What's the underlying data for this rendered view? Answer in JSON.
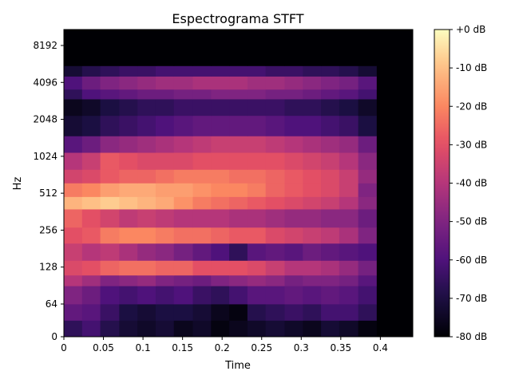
{
  "chart_data": {
    "type": "heatmap",
    "title": "Espectrograma STFT",
    "xlabel": "Time",
    "ylabel": "Hz",
    "xlim": [
      0,
      0.441
    ],
    "x_ticks": [
      "0",
      "0.05",
      "0.1",
      "0.15",
      "0.2",
      "0.25",
      "0.3",
      "0.35",
      "0.4"
    ],
    "x_tick_values": [
      0,
      0.05,
      0.1,
      0.15,
      0.2,
      0.25,
      0.3,
      0.35,
      0.4
    ],
    "y_scale": "log2-with-zero (symlog)",
    "y_ticks": [
      "0",
      "64",
      "128",
      "256",
      "512",
      "1024",
      "2048",
      "4096",
      "8192"
    ],
    "y_tick_values": [
      0,
      64,
      128,
      256,
      512,
      1024,
      2048,
      4096,
      8192
    ],
    "ylim": [
      0,
      11025
    ],
    "grid": false,
    "colormap": "magma",
    "colorbar": {
      "ticks": [
        "+0 dB",
        "-10 dB",
        "-20 dB",
        "-30 dB",
        "-40 dB",
        "-50 dB",
        "-60 dB",
        "-70 dB",
        "-80 dB"
      ],
      "range_db": [
        -80,
        0
      ]
    },
    "signal_end_time": 0.395,
    "frame_times": [
      0.0,
      0.023,
      0.046,
      0.07,
      0.093,
      0.116,
      0.139,
      0.163,
      0.186,
      0.209,
      0.232,
      0.255,
      0.279,
      0.302,
      0.325,
      0.348,
      0.372
    ],
    "bands": [
      {
        "hz": [
          0,
          32
        ],
        "db": [
          -66,
          -62,
          -68,
          -72,
          -74,
          -72,
          -76,
          -74,
          -78,
          -76,
          -74,
          -72,
          -74,
          -76,
          -72,
          -74,
          -78
        ]
      },
      {
        "hz": [
          32,
          64
        ],
        "db": [
          -56,
          -58,
          -64,
          -70,
          -72,
          -70,
          -70,
          -72,
          -76,
          -78,
          -68,
          -66,
          -64,
          -66,
          -62,
          -62,
          -66
        ]
      },
      {
        "hz": [
          64,
          90
        ],
        "db": [
          -50,
          -54,
          -60,
          -62,
          -60,
          -62,
          -60,
          -64,
          -66,
          -62,
          -58,
          -58,
          -56,
          -58,
          -56,
          -58,
          -62
        ]
      },
      {
        "hz": [
          90,
          110
        ],
        "db": [
          -40,
          -44,
          -50,
          -48,
          -46,
          -50,
          -52,
          -54,
          -50,
          -48,
          -46,
          -48,
          -52,
          -50,
          -50,
          -52,
          -58
        ]
      },
      {
        "hz": [
          110,
          145
        ],
        "db": [
          -32,
          -30,
          -26,
          -24,
          -24,
          -26,
          -26,
          -30,
          -30,
          -30,
          -32,
          -36,
          -40,
          -40,
          -42,
          -46,
          -52
        ]
      },
      {
        "hz": [
          145,
          200
        ],
        "db": [
          -36,
          -40,
          -38,
          -42,
          -46,
          -48,
          -52,
          -56,
          -60,
          -66,
          -58,
          -56,
          -58,
          -54,
          -56,
          -58,
          -60
        ]
      },
      {
        "hz": [
          200,
          270
        ],
        "db": [
          -30,
          -28,
          -22,
          -20,
          -20,
          -22,
          -24,
          -24,
          -26,
          -28,
          -28,
          -32,
          -34,
          -36,
          -38,
          -42,
          -50
        ]
      },
      {
        "hz": [
          270,
          380
        ],
        "db": [
          -26,
          -30,
          -34,
          -38,
          -36,
          -38,
          -40,
          -40,
          -40,
          -42,
          -42,
          -44,
          -46,
          -46,
          -48,
          -48,
          -54
        ]
      },
      {
        "hz": [
          380,
          480
        ],
        "db": [
          -12,
          -10,
          -8,
          -10,
          -12,
          -14,
          -18,
          -22,
          -24,
          -26,
          -28,
          -30,
          -32,
          -34,
          -36,
          -40,
          -48
        ]
      },
      {
        "hz": [
          480,
          620
        ],
        "db": [
          -22,
          -20,
          -16,
          -14,
          -14,
          -16,
          -16,
          -18,
          -20,
          -20,
          -22,
          -26,
          -28,
          -30,
          -32,
          -36,
          -50
        ]
      },
      {
        "hz": [
          620,
          800
        ],
        "db": [
          -34,
          -32,
          -28,
          -26,
          -26,
          -24,
          -22,
          -22,
          -22,
          -24,
          -24,
          -26,
          -28,
          -30,
          -32,
          -36,
          -46
        ]
      },
      {
        "hz": [
          800,
          1100
        ],
        "db": [
          -40,
          -36,
          -28,
          -30,
          -32,
          -32,
          -32,
          -30,
          -30,
          -30,
          -30,
          -30,
          -32,
          -34,
          -36,
          -40,
          -48
        ]
      },
      {
        "hz": [
          1100,
          1500
        ],
        "db": [
          -58,
          -54,
          -48,
          -46,
          -44,
          -42,
          -40,
          -38,
          -36,
          -36,
          -36,
          -38,
          -40,
          -42,
          -44,
          -46,
          -54
        ]
      },
      {
        "hz": [
          1500,
          2200
        ],
        "db": [
          -72,
          -70,
          -66,
          -64,
          -62,
          -60,
          -58,
          -56,
          -56,
          -56,
          -56,
          -58,
          -60,
          -60,
          -62,
          -64,
          -70
        ]
      },
      {
        "hz": [
          2200,
          3000
        ],
        "db": [
          -76,
          -74,
          -70,
          -68,
          -66,
          -66,
          -64,
          -64,
          -64,
          -64,
          -64,
          -64,
          -66,
          -66,
          -68,
          -70,
          -74
        ]
      },
      {
        "hz": [
          3000,
          3600
        ],
        "db": [
          -66,
          -60,
          -58,
          -56,
          -54,
          -54,
          -52,
          -52,
          -50,
          -50,
          -50,
          -52,
          -52,
          -54,
          -56,
          -58,
          -62
        ]
      },
      {
        "hz": [
          3600,
          4600
        ],
        "db": [
          -60,
          -54,
          -50,
          -48,
          -46,
          -44,
          -44,
          -42,
          -42,
          -42,
          -44,
          -44,
          -46,
          -48,
          -50,
          -52,
          -58
        ]
      },
      {
        "hz": [
          4600,
          5600
        ],
        "db": [
          -72,
          -68,
          -66,
          -64,
          -64,
          -62,
          -62,
          -62,
          -62,
          -62,
          -62,
          -64,
          -64,
          -66,
          -66,
          -68,
          -72
        ]
      },
      {
        "hz": [
          5600,
          11025
        ],
        "db": [
          -80,
          -80,
          -80,
          -80,
          -80,
          -80,
          -80,
          -80,
          -80,
          -80,
          -80,
          -80,
          -80,
          -80,
          -80,
          -80,
          -80
        ]
      }
    ]
  }
}
